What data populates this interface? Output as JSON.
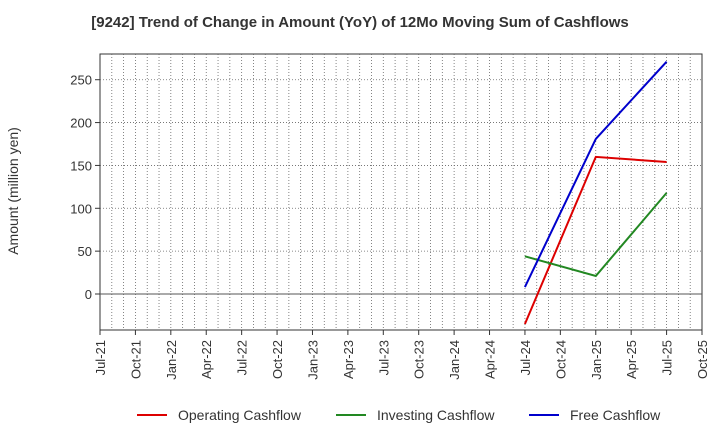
{
  "chart_data": {
    "type": "line",
    "title": "[9242]  Trend of Change in Amount (YoY) of 12Mo Moving Sum of Cashflows",
    "ylabel": "Amount (million yen)",
    "xlabel": "",
    "ylim": [
      -42,
      280
    ],
    "yticks": [
      0,
      50,
      100,
      150,
      200,
      250
    ],
    "categories": [
      "Jul-21",
      "Oct-21",
      "Jan-22",
      "Apr-22",
      "Jul-22",
      "Oct-22",
      "Jan-23",
      "Apr-23",
      "Jul-23",
      "Oct-23",
      "Jan-24",
      "Apr-24",
      "Jul-24",
      "Oct-24",
      "Jan-25",
      "Apr-25",
      "Jul-25",
      "Oct-25"
    ],
    "grid": true,
    "legend_position": "bottom",
    "series": [
      {
        "name": "Operating Cashflow",
        "color": "#dd0000",
        "points": [
          [
            "Jul-24",
            -35
          ],
          [
            "Jan-25",
            160
          ],
          [
            "Jul-25",
            154
          ]
        ]
      },
      {
        "name": "Investing Cashflow",
        "color": "#228822",
        "points": [
          [
            "Jul-24",
            44
          ],
          [
            "Jan-25",
            21
          ],
          [
            "Jul-25",
            118
          ]
        ]
      },
      {
        "name": "Free Cashflow",
        "color": "#0000cc",
        "points": [
          [
            "Jul-24",
            8
          ],
          [
            "Jan-25",
            181
          ],
          [
            "Jul-25",
            271
          ]
        ]
      }
    ]
  }
}
